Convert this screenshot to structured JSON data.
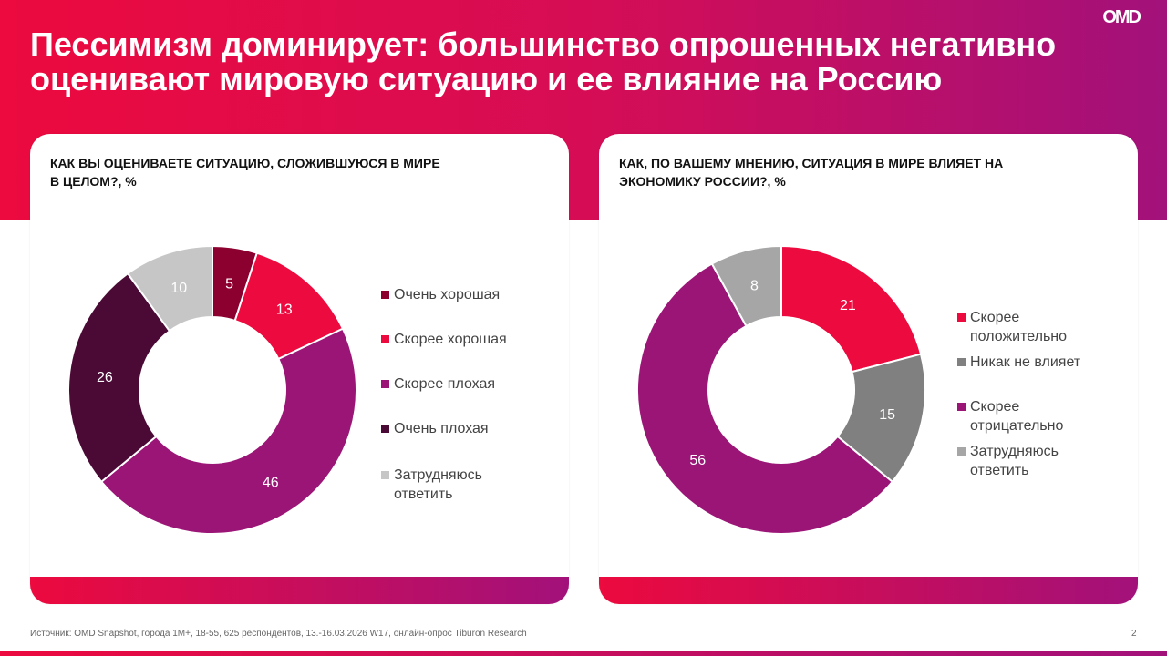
{
  "title": "Пессимизм доминирует: большинство опрошенных негативно оценивают мировую ситуацию и ее влияние на Россию",
  "logo": "OMD",
  "footer": {
    "source": "Источник: OMD Snapshot, города 1М+, 18-55, 625  респондентов, 13.-16.03.2026 W17, онлайн-опрос Tiburon Research",
    "page": "2"
  },
  "chart_data": [
    {
      "type": "pie",
      "title": "КАК ВЫ ОЦЕНИВАЕТЕ СИТУАЦИЮ, СЛОЖИВШУЮСЯ В МИРЕ В ЦЕЛОМ?, %",
      "legend": "right",
      "categories": [
        "Очень хорошая",
        "Скорее хорошая",
        "Скорее плохая",
        "Очень плохая",
        "Затрудняюсь ответить"
      ],
      "values": [
        5,
        13,
        46,
        26,
        10
      ],
      "colors": [
        "#8c0030",
        "#ec0a3e",
        "#9b1577",
        "#4a0a35",
        "#c6c6c6"
      ]
    },
    {
      "type": "pie",
      "title": "КАК, ПО ВАШЕМУ МНЕНИЮ, СИТУАЦИЯ В МИРЕ ВЛИЯЕТ НА ЭКОНОМИКУ РОССИИ?, %",
      "legend": "right",
      "categories": [
        "Скорее положительно",
        "Никак не влияет",
        "Скорее отрицательно",
        "Затрудняюсь ответить"
      ],
      "values": [
        21,
        15,
        56,
        8
      ],
      "colors": [
        "#ec0a3e",
        "#808080",
        "#9b1577",
        "#a6a6a6"
      ]
    }
  ]
}
